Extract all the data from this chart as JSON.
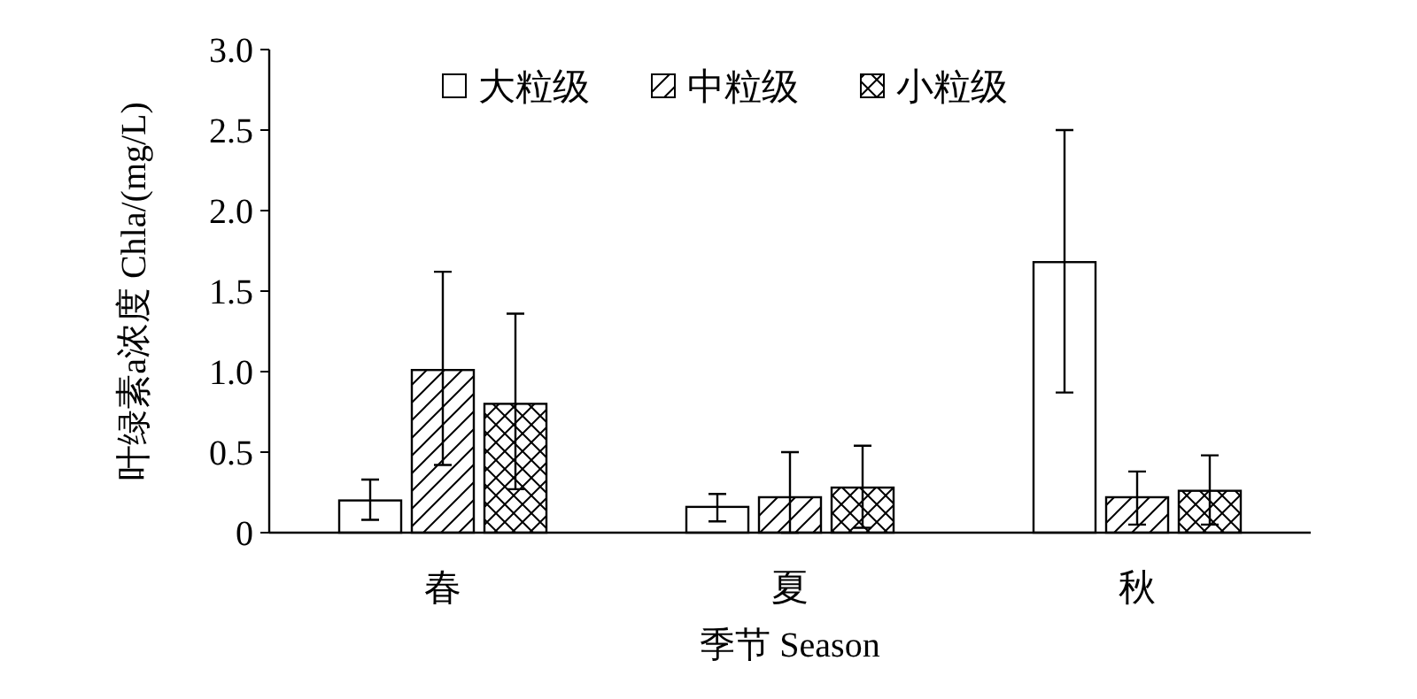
{
  "chart_data": {
    "type": "bar",
    "xlabel": "季节 Season",
    "ylabel": "叶绿素a浓度 Chla/(mg/L)",
    "categories": [
      "春",
      "夏",
      "秋"
    ],
    "series": [
      {
        "name": "大粒级",
        "color": "#000000",
        "values": [
          0.2,
          0.16,
          1.68
        ],
        "errors": [
          [
            0.08,
            0.33
          ],
          [
            0.07,
            0.24
          ],
          [
            0.87,
            2.5
          ]
        ]
      },
      {
        "name": "中粒级",
        "color": "#000000",
        "values": [
          1.01,
          0.22,
          0.22
        ],
        "errors": [
          [
            0.42,
            1.62
          ],
          [
            0,
            0.5
          ],
          [
            0.05,
            0.38
          ]
        ]
      },
      {
        "name": "小粒级",
        "color": "#000000",
        "values": [
          0.8,
          0.28,
          0.26
        ],
        "errors": [
          [
            0.27,
            1.36
          ],
          [
            0.03,
            0.54
          ],
          [
            0.05,
            0.48
          ]
        ]
      }
    ],
    "ylim": [
      0,
      3
    ],
    "yticks": [
      0,
      0.5,
      {
        "value": 1,
        "label": "1.0"
      },
      1.5,
      {
        "value": 2,
        "label": "2.0"
      },
      2.5,
      {
        "value": 3,
        "label": "3.0"
      }
    ],
    "legend": "top",
    "grid": false
  }
}
